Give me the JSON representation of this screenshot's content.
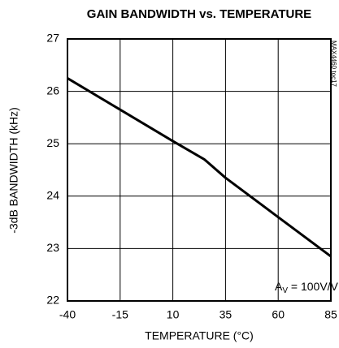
{
  "chart_data": {
    "type": "line",
    "title": "GAIN BANDWIDTH vs. TEMPERATURE",
    "x_label": "TEMPERATURE (°C)",
    "y_label": "-3dB BANDWIDTH (kHz)",
    "annotation": {
      "main": "A",
      "sub": "V",
      "rest": " = 100V/V"
    },
    "code": "MAX4460 toc17",
    "x": [
      -40,
      -15,
      10,
      25,
      35,
      60,
      85
    ],
    "values": [
      26.25,
      25.65,
      25.05,
      24.7,
      24.35,
      23.6,
      22.85
    ],
    "color": "#000000",
    "xlim": [
      -40,
      85
    ],
    "xticks": [
      -40,
      -15,
      10,
      35,
      60,
      85
    ],
    "ylim": [
      22,
      27
    ],
    "yticks": [
      22,
      23,
      24,
      25,
      26,
      27
    ],
    "grid": true
  }
}
